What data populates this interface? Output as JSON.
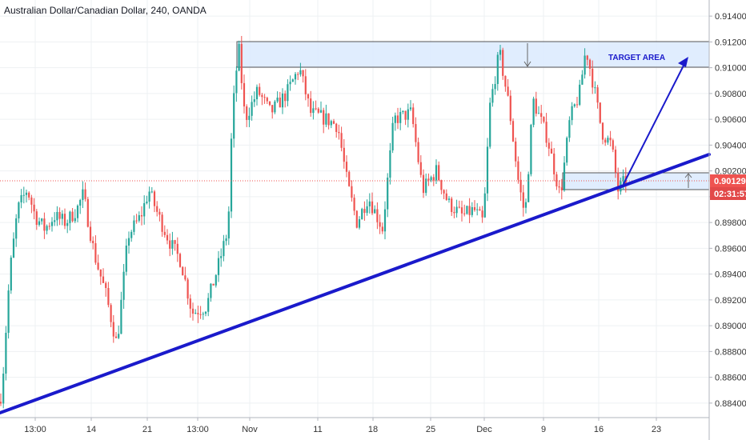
{
  "chart_data": {
    "type": "candlestick",
    "title": "Australian Dollar/Canadian Dollar, 240, OANDA",
    "ylim": [
      0.883,
      0.915
    ],
    "y_ticks": [
      "0.91400",
      "0.91200",
      "0.91000",
      "0.90800",
      "0.90600",
      "0.90400",
      "0.90200",
      "0.90000",
      "0.89800",
      "0.89600",
      "0.89400",
      "0.89200",
      "0.89000",
      "0.88800",
      "0.88600",
      "0.88400"
    ],
    "x_ticks": [
      "13:00",
      "14",
      "21",
      "13:00",
      "Nov",
      "11",
      "18",
      "25",
      "Dec",
      "9",
      "16",
      "23"
    ],
    "grid": true,
    "colors": {
      "up": "#26a69a",
      "down": "#ef5350",
      "trendline": "#1a1acb",
      "zone_fill": "#dbeafe",
      "zone_border": "#555555",
      "price_box": "#ef5350",
      "time_box": "#e24949"
    },
    "current_price": "0.90129",
    "countdown": "02:31:57",
    "annotations": {
      "target_label": "TARGET AREA"
    },
    "waypoints": [
      [
        0,
        0.8841
      ],
      [
        3,
        0.8855
      ],
      [
        12,
        0.894
      ],
      [
        22,
        0.899
      ],
      [
        34,
        0.9006
      ],
      [
        44,
        0.8985
      ],
      [
        56,
        0.8975
      ],
      [
        68,
        0.8985
      ],
      [
        82,
        0.898
      ],
      [
        96,
        0.899
      ],
      [
        104,
        0.9002
      ],
      [
        118,
        0.8955
      ],
      [
        132,
        0.8925
      ],
      [
        146,
        0.8885
      ],
      [
        160,
        0.897
      ],
      [
        176,
        0.8985
      ],
      [
        186,
        0.9005
      ],
      [
        198,
        0.8985
      ],
      [
        212,
        0.8965
      ],
      [
        226,
        0.895
      ],
      [
        240,
        0.891
      ],
      [
        258,
        0.8915
      ],
      [
        272,
        0.8945
      ],
      [
        285,
        0.8975
      ],
      [
        290,
        0.906
      ],
      [
        298,
        0.9117
      ],
      [
        306,
        0.906
      ],
      [
        322,
        0.9082
      ],
      [
        338,
        0.9065
      ],
      [
        358,
        0.908
      ],
      [
        374,
        0.91
      ],
      [
        388,
        0.9065
      ],
      [
        408,
        0.906
      ],
      [
        422,
        0.9055
      ],
      [
        434,
        0.901
      ],
      [
        446,
        0.898
      ],
      [
        460,
        0.9
      ],
      [
        478,
        0.8975
      ],
      [
        492,
        0.906
      ],
      [
        514,
        0.9065
      ],
      [
        528,
        0.9005
      ],
      [
        545,
        0.902
      ],
      [
        560,
        0.8995
      ],
      [
        578,
        0.8985
      ],
      [
        592,
        0.899
      ],
      [
        604,
        0.898
      ],
      [
        612,
        0.907
      ],
      [
        624,
        0.9112
      ],
      [
        636,
        0.907
      ],
      [
        648,
        0.901
      ],
      [
        656,
        0.8985
      ],
      [
        666,
        0.9075
      ],
      [
        684,
        0.9045
      ],
      [
        700,
        0.9
      ],
      [
        712,
        0.906
      ],
      [
        724,
        0.908
      ],
      [
        732,
        0.9115
      ],
      [
        742,
        0.9085
      ],
      [
        752,
        0.905
      ],
      [
        764,
        0.904
      ],
      [
        772,
        0.9005
      ],
      [
        782,
        0.9013
      ]
    ]
  }
}
